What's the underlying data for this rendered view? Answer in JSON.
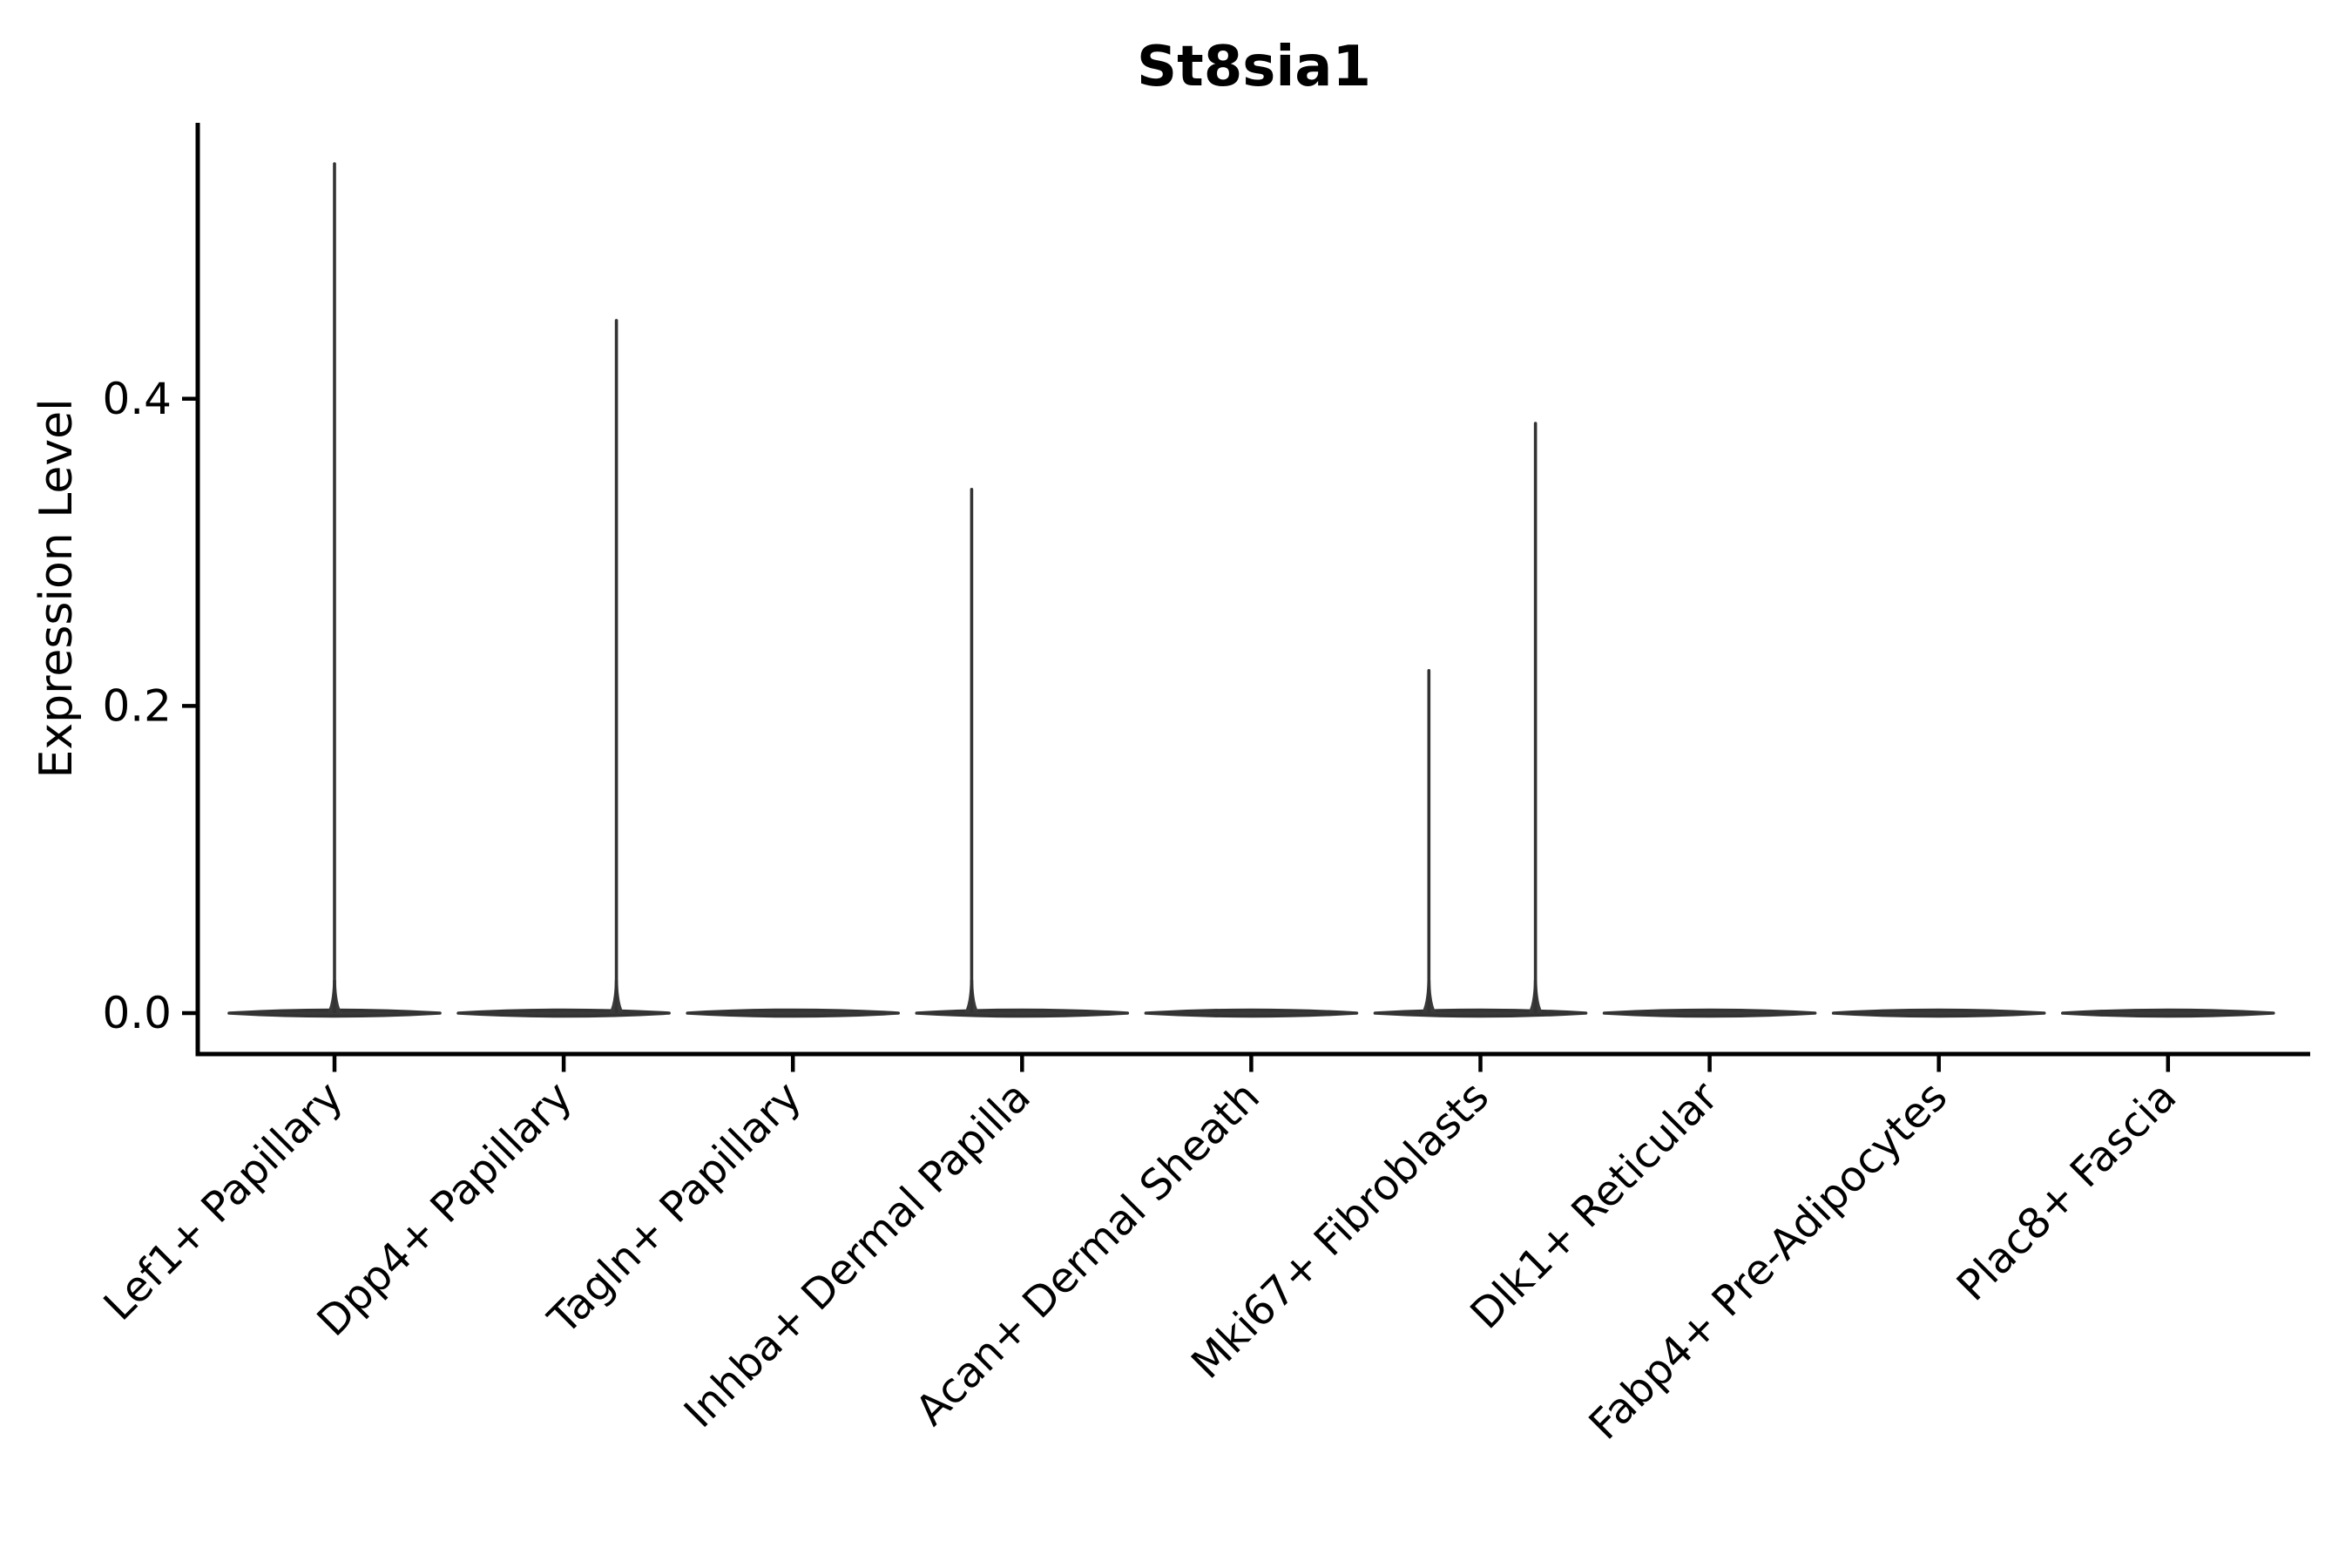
{
  "title": "St8sia1",
  "ylabel": "Expression Level",
  "xlabel": "",
  "colors": {
    "background": "#ffffff",
    "axis": "#000000",
    "text": "#000000",
    "violin_fill": "#3a3a3a",
    "violin_stroke": "#333333"
  },
  "chart_data": {
    "type": "violin",
    "title": "St8sia1",
    "xlabel": "",
    "ylabel": "Expression Level",
    "grid": false,
    "legend": false,
    "ylim": [
      -0.027,
      0.58
    ],
    "y_ticks": [
      {
        "value": 0.0,
        "label": "0.0"
      },
      {
        "value": 0.2,
        "label": "0.2"
      },
      {
        "value": 0.4,
        "label": "0.4"
      }
    ],
    "categories": [
      "Lef1+ Papillary",
      "Dpp4+ Papillary",
      "Tagln+ Papillary",
      "Inhba+ Dermal Papilla",
      "Acan+ Dermal Sheath",
      "Mki67+ Fibroblasts",
      "Dlk1+ Reticular",
      "Fabp4+ Pre-Adipocytes",
      "Plac8+ Fascia"
    ],
    "violins": [
      {
        "category": "Lef1+ Papillary",
        "base_value": 0.0,
        "max_value": 0.553,
        "spikes": [
          {
            "offset_frac": 0.0,
            "value": 0.553
          }
        ]
      },
      {
        "category": "Dpp4+ Papillary",
        "base_value": 0.0,
        "max_value": 0.451,
        "spikes": [
          {
            "offset_frac": 0.23,
            "value": 0.451
          }
        ]
      },
      {
        "category": "Tagln+ Papillary",
        "base_value": 0.0,
        "max_value": 0.0,
        "spikes": []
      },
      {
        "category": "Inhba+ Dermal Papilla",
        "base_value": 0.0,
        "max_value": 0.341,
        "spikes": [
          {
            "offset_frac": -0.22,
            "value": 0.341
          }
        ]
      },
      {
        "category": "Acan+ Dermal Sheath",
        "base_value": 0.0,
        "max_value": 0.0,
        "spikes": []
      },
      {
        "category": "Mki67+ Fibroblasts",
        "base_value": 0.0,
        "max_value": 0.384,
        "spikes": [
          {
            "offset_frac": -0.225,
            "value": 0.223
          },
          {
            "offset_frac": 0.24,
            "value": 0.384
          }
        ]
      },
      {
        "category": "Dlk1+ Reticular",
        "base_value": 0.0,
        "max_value": 0.0,
        "spikes": []
      },
      {
        "category": "Fabp4+ Pre-Adipocytes",
        "base_value": 0.0,
        "max_value": 0.0,
        "spikes": []
      },
      {
        "category": "Plac8+ Fascia",
        "base_value": 0.0,
        "max_value": 0.0,
        "spikes": []
      }
    ]
  }
}
